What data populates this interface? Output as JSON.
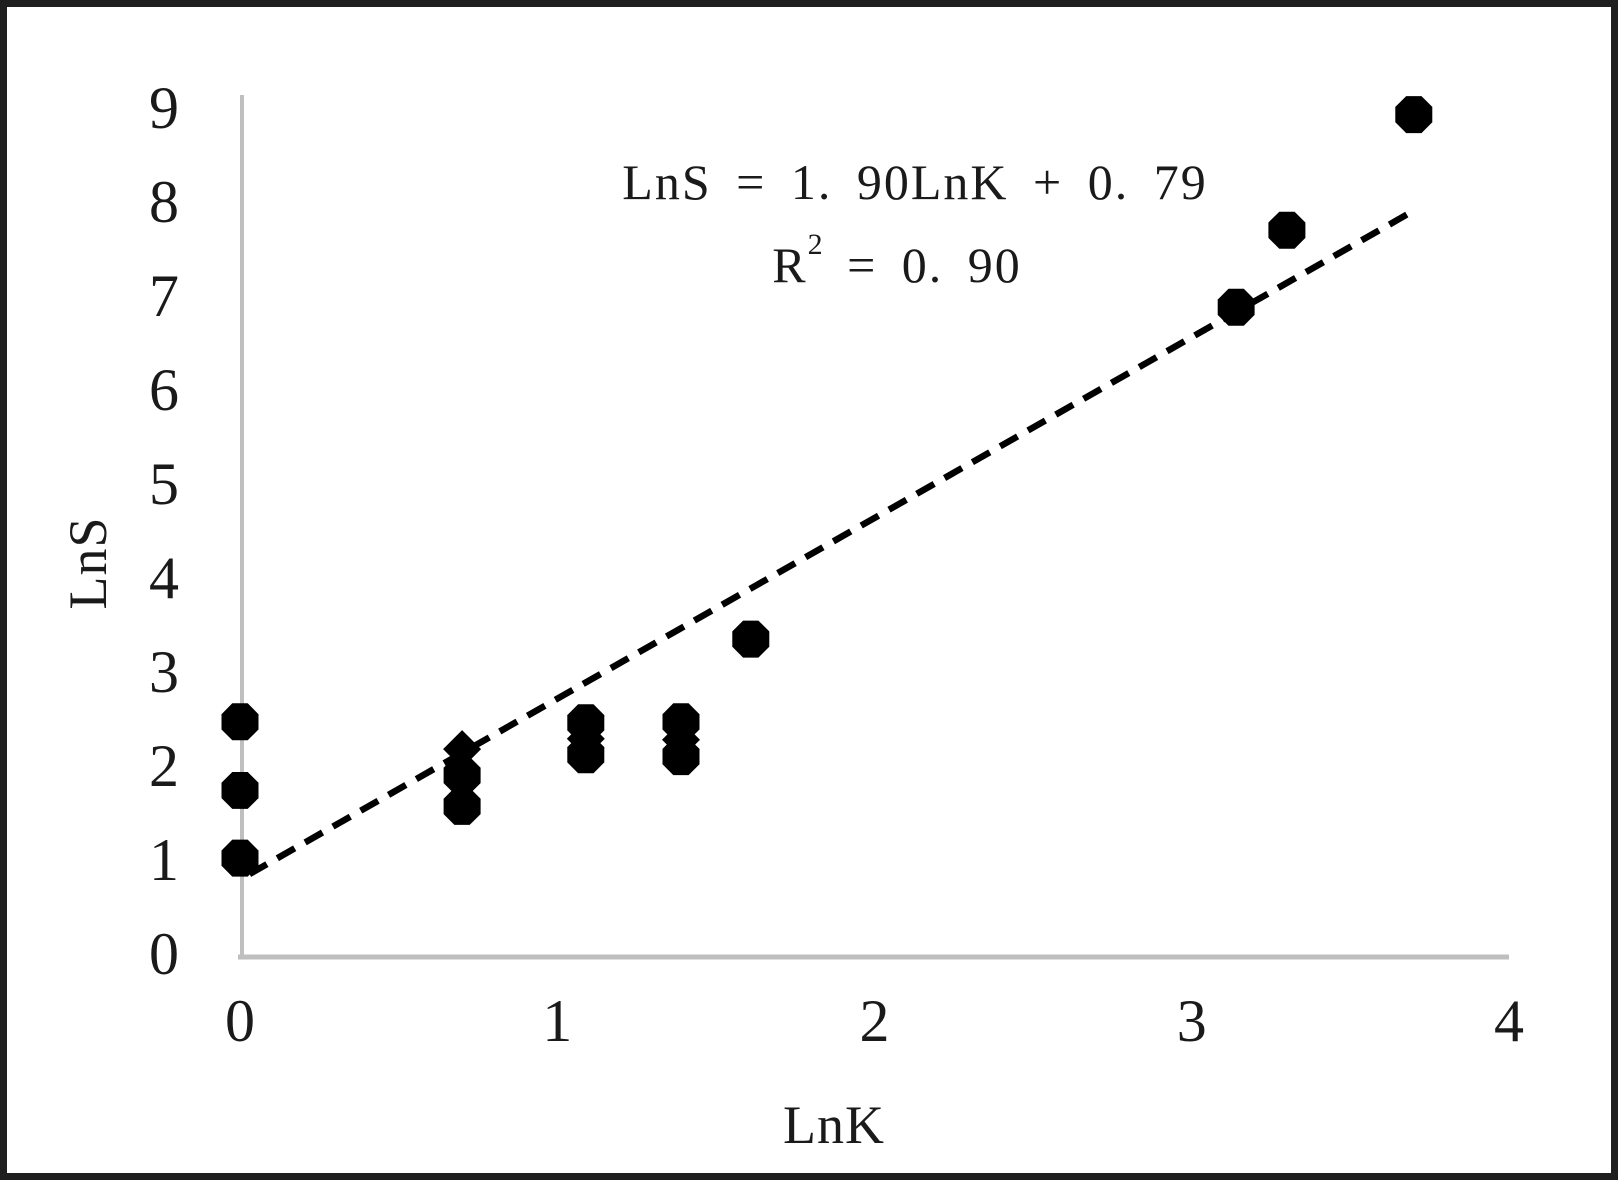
{
  "figure": {
    "background": "#ffffff",
    "border_color": "#1f1f1f",
    "text_color": "#1a1a1a",
    "axis_line_color": "#bfbfbf"
  },
  "chart_data": {
    "type": "scatter",
    "title": "",
    "xlabel": "LnK",
    "ylabel": "LnS",
    "xlim": [
      0,
      4
    ],
    "ylim": [
      0,
      9
    ],
    "x_ticks": [
      "0",
      "1",
      "2",
      "3",
      "4"
    ],
    "y_ticks": [
      "0",
      "1",
      "2",
      "3",
      "4",
      "5",
      "6",
      "7",
      "8",
      "9"
    ],
    "grid": false,
    "legend_position": "none",
    "marker_color": "#000000",
    "points": [
      {
        "x": 0.0,
        "y": 2.47,
        "marker": "circle"
      },
      {
        "x": 0.0,
        "y": 1.74,
        "marker": "circle"
      },
      {
        "x": 0.0,
        "y": 1.02,
        "marker": "circle"
      },
      {
        "x": 0.7,
        "y": 2.18,
        "marker": "diamond"
      },
      {
        "x": 0.7,
        "y": 1.9,
        "marker": "circle"
      },
      {
        "x": 0.7,
        "y": 1.57,
        "marker": "circle"
      },
      {
        "x": 1.09,
        "y": 2.46,
        "marker": "circle"
      },
      {
        "x": 1.09,
        "y": 2.29,
        "marker": "diamond"
      },
      {
        "x": 1.09,
        "y": 2.12,
        "marker": "circle"
      },
      {
        "x": 1.39,
        "y": 2.47,
        "marker": "circle"
      },
      {
        "x": 1.39,
        "y": 2.28,
        "marker": "diamond"
      },
      {
        "x": 1.39,
        "y": 2.1,
        "marker": "circle"
      },
      {
        "x": 1.61,
        "y": 3.35,
        "marker": "circle"
      },
      {
        "x": 3.14,
        "y": 6.88,
        "marker": "circle"
      },
      {
        "x": 3.3,
        "y": 7.7,
        "marker": "circle"
      },
      {
        "x": 3.7,
        "y": 8.93,
        "marker": "circle"
      }
    ],
    "trendline": {
      "style": "dashed",
      "color": "#000000",
      "x1": 0.03,
      "y1": 0.85,
      "x2": 3.68,
      "y2": 7.87
    },
    "annotation": {
      "equation": "LnS = 1. 90LnK + 0. 79",
      "r2_base": "R",
      "r2_sup": "2",
      "r2_rest": " = 0. 90"
    }
  }
}
